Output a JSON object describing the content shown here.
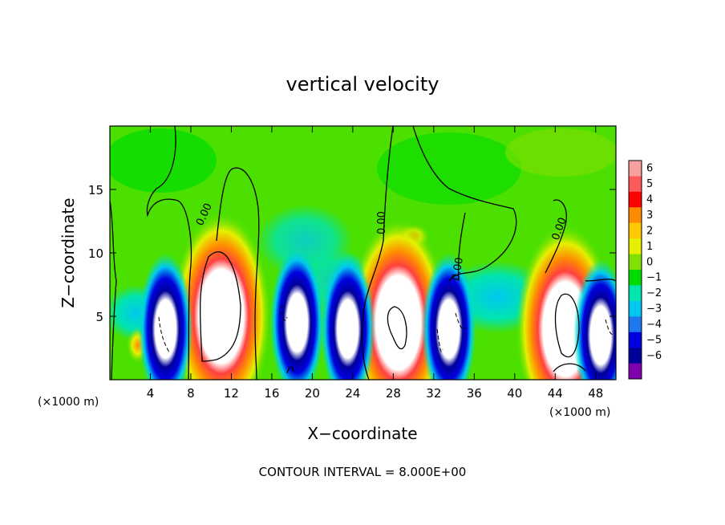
{
  "chart_data": {
    "type": "heatmap",
    "title": "vertical velocity",
    "xlabel": "X−coordinate",
    "ylabel": "Z−coordinate",
    "x_unit_left": "(×1000 m)",
    "x_unit_right": "(×1000 m)",
    "xlim": [
      0,
      50
    ],
    "ylim": [
      0,
      20
    ],
    "x_ticks": [
      "4",
      "8",
      "12",
      "16",
      "20",
      "24",
      "28",
      "32",
      "36",
      "40",
      "44",
      "48"
    ],
    "y_ticks": [
      "5",
      "10",
      "15"
    ],
    "footer": "CONTOUR INTERVAL = 8.000E+00",
    "contour_labels": [
      "0.00",
      "0.00",
      "0.00",
      "0.00"
    ],
    "colorbar": {
      "labels": [
        "6",
        "5",
        "4",
        "3",
        "2",
        "1",
        "0",
        "−1",
        "−2",
        "−3",
        "−4",
        "−5",
        "−6"
      ],
      "colors": [
        "#f6a0a0",
        "#ff5a5a",
        "#ff0000",
        "#ff8c00",
        "#ffc800",
        "#e6f000",
        "#80e000",
        "#00dc00",
        "#00e4b0",
        "#00c8f0",
        "#1e78f0",
        "#0000e0",
        "#00009a",
        "#8000b0"
      ]
    },
    "updrafts": [
      {
        "x": 11,
        "z": 5
      },
      {
        "x": 28.5,
        "z": 4.5
      },
      {
        "x": 45,
        "z": 4
      }
    ],
    "downdrafts": [
      {
        "x": 5.5,
        "z": 4
      },
      {
        "x": 18.5,
        "z": 4.5
      },
      {
        "x": 23.5,
        "z": 4
      },
      {
        "x": 33.5,
        "z": 4
      },
      {
        "x": 48.5,
        "z": 3.5
      }
    ]
  }
}
